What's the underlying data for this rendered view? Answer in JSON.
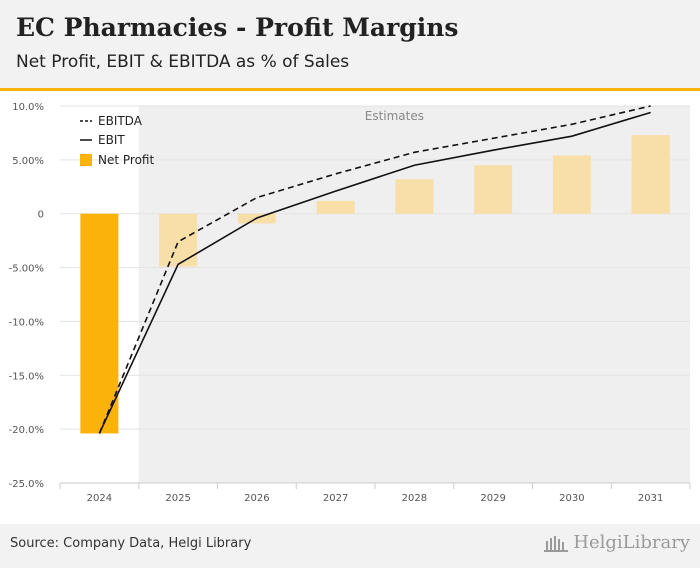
{
  "header": {
    "title": "EC Pharmacies - Profit Margins",
    "subtitle": "Net Profit, EBIT & EBITDA as % of Sales"
  },
  "footer": {
    "source": "Source: Company Data, Helgi Library",
    "brand": "HelgiLibrary"
  },
  "colors": {
    "accent": "#fbb20b",
    "net_profit_actual": "#fbb20b",
    "net_profit_estimate": "#f8dfa8",
    "estimate_band": "#efefef",
    "line": "#111111"
  },
  "chart_data": {
    "type": "bar",
    "title": "EC Pharmacies - Profit Margins",
    "subtitle": "Net Profit, EBIT & EBITDA as % of Sales",
    "categories": [
      "2024",
      "2025",
      "2026",
      "2027",
      "2028",
      "2029",
      "2030",
      "2031"
    ],
    "estimates_label": "Estimates",
    "estimates_start_index": 1,
    "ylim": [
      -25,
      10
    ],
    "yticks": [
      {
        "value": 10,
        "label": "10.0%"
      },
      {
        "value": 5,
        "label": "5.00%"
      },
      {
        "value": 0,
        "label": "0"
      },
      {
        "value": -5,
        "label": "-5.00%"
      },
      {
        "value": -10,
        "label": "-10.0%"
      },
      {
        "value": -15,
        "label": "-15.0%"
      },
      {
        "value": -20,
        "label": "-20.0%"
      },
      {
        "value": -25,
        "label": "-25.0%"
      }
    ],
    "legend_position": "top-left",
    "series": [
      {
        "name": "EBITDA",
        "kind": "line",
        "style": "dashed",
        "values": [
          -20.4,
          -2.6,
          1.5,
          3.7,
          5.7,
          7.0,
          8.3,
          10.0
        ]
      },
      {
        "name": "EBIT",
        "kind": "line",
        "style": "solid",
        "values": [
          -20.4,
          -4.7,
          -0.4,
          2.1,
          4.5,
          5.9,
          7.2,
          9.4
        ]
      },
      {
        "name": "Net Profit",
        "kind": "bar",
        "values": [
          -20.4,
          -4.9,
          -0.9,
          1.2,
          3.2,
          4.5,
          5.4,
          7.3
        ]
      }
    ]
  }
}
